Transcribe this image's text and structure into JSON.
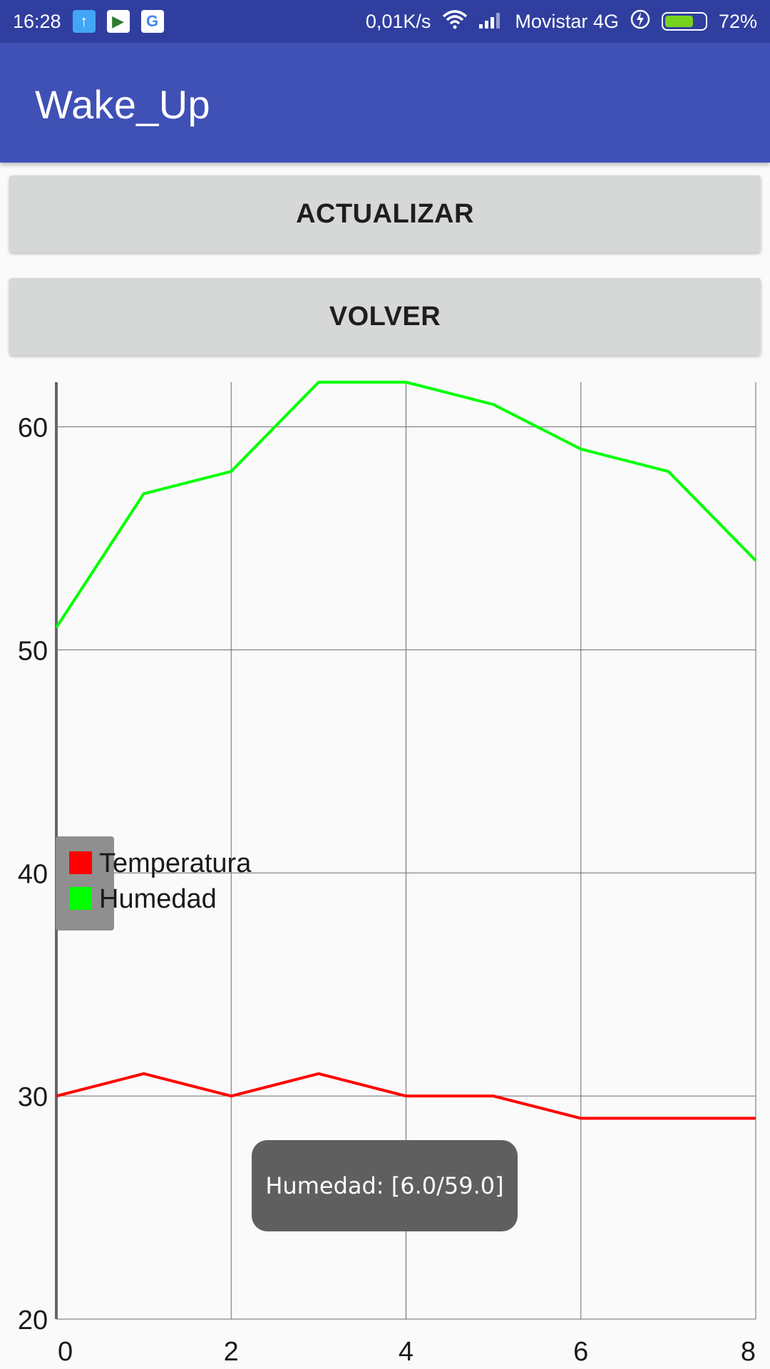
{
  "status_bar": {
    "time": "16:28",
    "speed": "0,01K/s",
    "carrier": "Movistar 4G",
    "battery_text": "72%",
    "battery_level": 0.72,
    "icons": {
      "upload": "upload-arrow-icon",
      "play": "play-store-icon",
      "google": "google-icon",
      "wifi": "wifi-icon",
      "signal": "signal-icon",
      "charging": "charging-bolt-icon"
    }
  },
  "app_bar": {
    "title": "Wake_Up"
  },
  "buttons": {
    "refresh": "ACTUALIZAR",
    "back": "VOLVER"
  },
  "toast": {
    "text": "Humedad: [6.0/59.0]"
  },
  "colors": {
    "status_bar": "#303f9f",
    "app_bar": "#3f51b5",
    "temperatura": "#ff0000",
    "humedad": "#00ff00"
  },
  "chart_data": {
    "type": "line",
    "x": [
      0,
      1,
      2,
      3,
      4,
      5,
      6,
      7,
      8
    ],
    "series": [
      {
        "name": "Temperatura",
        "color": "#ff0000",
        "values": [
          30,
          31,
          30,
          31,
          30,
          30,
          29,
          29,
          29
        ]
      },
      {
        "name": "Humedad",
        "color": "#00ff00",
        "values": [
          51,
          57,
          58,
          62,
          62,
          61,
          59,
          58,
          54
        ]
      }
    ],
    "x_ticks": [
      0,
      2,
      4,
      6,
      8
    ],
    "y_ticks": [
      20,
      30,
      40,
      50,
      60
    ],
    "xlim": [
      0,
      8
    ],
    "ylim": [
      20,
      62
    ],
    "grid": true,
    "legend_position": "middle-left"
  }
}
